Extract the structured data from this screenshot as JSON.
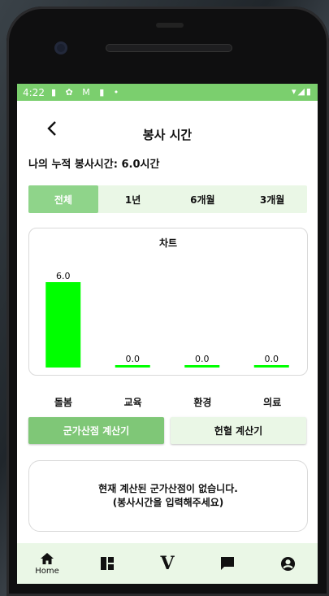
{
  "status_bar": {
    "time": "4:22",
    "left_icons": "▮ ✿ M ▮ •",
    "right_icons": "▾◢▮"
  },
  "header": {
    "back_icon": "chevron-left",
    "title": "봉사 시간"
  },
  "summary": {
    "text": "나의 누적 봉사시간: 6.0시간"
  },
  "tabs": [
    {
      "label": "전체",
      "active": true
    },
    {
      "label": "1년",
      "active": false
    },
    {
      "label": "6개월",
      "active": false
    },
    {
      "label": "3개월",
      "active": false
    }
  ],
  "chart_data": {
    "type": "bar",
    "title": "차트",
    "categories": [
      "돌봄",
      "교육",
      "환경",
      "의료"
    ],
    "values": [
      6.0,
      0.0,
      0.0,
      0.0
    ],
    "data_labels": [
      "6.0",
      "0.0",
      "0.0",
      "0.0"
    ],
    "ylim": [
      0,
      6.0
    ],
    "bar_color": "#00ff00",
    "grid": false,
    "legend": "none"
  },
  "buttons": {
    "military_points": "군가산점 계산기",
    "blood_donation": "헌혈 계산기"
  },
  "info": {
    "line1": "현재 계산된 군가산점이 없습니다.",
    "line2": "(봉사시간을 입력해주세요)"
  },
  "bottom_nav": [
    {
      "icon": "home-icon",
      "glyph": "⌂",
      "label": "Home"
    },
    {
      "icon": "dashboard-icon",
      "glyph": "",
      "label": ""
    },
    {
      "icon": "v-logo-icon",
      "glyph": "V",
      "label": ""
    },
    {
      "icon": "chat-icon",
      "glyph": "",
      "label": ""
    },
    {
      "icon": "account-icon",
      "glyph": "",
      "label": ""
    }
  ],
  "colors": {
    "accent": "#7bcf6e",
    "tab_active": "#8fd48a",
    "light_green": "#eaf7e6",
    "bar": "#00ff00"
  }
}
